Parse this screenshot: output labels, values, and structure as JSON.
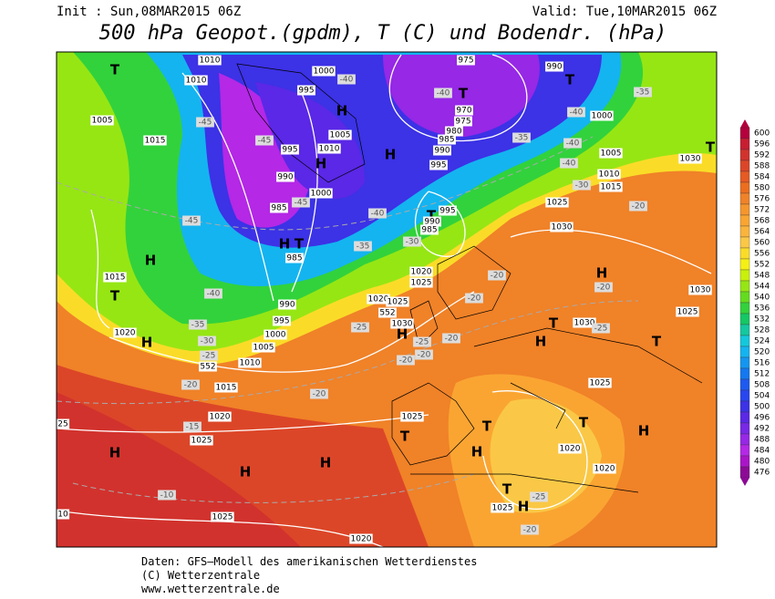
{
  "header": {
    "init": "Init : Sun,08MAR2015 06Z",
    "valid": "Valid: Tue,10MAR2015 06Z",
    "title": "500 hPa Geopot.(gpdm), T (C) und Bodendr. (hPa)"
  },
  "scale": {
    "ticks": [
      600,
      596,
      592,
      588,
      584,
      580,
      576,
      572,
      568,
      564,
      560,
      556,
      552,
      548,
      544,
      540,
      536,
      532,
      528,
      524,
      520,
      516,
      512,
      508,
      504,
      500,
      496,
      492,
      488,
      484,
      480,
      476
    ],
    "colors": [
      "#b4003c",
      "#c81e32",
      "#d2322d",
      "#dc4628",
      "#e65a23",
      "#eb6e1e",
      "#f08228",
      "#f5962d",
      "#faa532",
      "#fab43c",
      "#fac846",
      "#fadc28",
      "#f5f014",
      "#c8f00a",
      "#96e614",
      "#64dc1e",
      "#32d23c",
      "#14c864",
      "#14c8a0",
      "#14c8dc",
      "#14b4f0",
      "#1496f0",
      "#1478f0",
      "#1e5af0",
      "#2846f0",
      "#3c32e6",
      "#5a28e6",
      "#7828e6",
      "#9628e6",
      "#b428e6",
      "#aa14c8",
      "#8c0a96"
    ]
  },
  "map": {
    "labels": [
      "T",
      "1010",
      "1010",
      "1005",
      "1015",
      "-45",
      "-45",
      "995",
      "1000",
      "-40",
      "H",
      "1005",
      "1010",
      "995",
      "H",
      "-45",
      "990",
      "985",
      "-45",
      "1000",
      "H",
      "975",
      "T",
      "-40",
      "970",
      "975",
      "980",
      "985",
      "990",
      "995",
      "990",
      "T",
      "-35",
      "-40",
      "1000",
      "-35",
      "-40",
      "1005",
      "-40",
      "1010",
      "1015",
      "-30",
      "1025",
      "-20",
      "T",
      "1030",
      "T",
      "995",
      "990",
      "985",
      "-40",
      "-35",
      "-30",
      "1030",
      "H",
      "1015",
      "T",
      "-40",
      "T",
      "985",
      "H",
      "990",
      "995",
      "1000",
      "1005",
      "1010",
      "1020",
      "H",
      "-35",
      "-30",
      "-25",
      "552",
      "-20",
      "1015",
      "-25",
      "1020",
      "1025",
      "552",
      "1030",
      "H",
      "-25",
      "-20",
      "-20",
      "-20",
      "1020",
      "1025",
      "H",
      "-20",
      "1030",
      "1025",
      "T",
      "1030",
      "H",
      "T",
      "-25",
      "1025",
      "-20",
      "-20",
      "-20",
      "1020",
      "-15",
      "1025",
      "1025",
      "T",
      "T",
      "T",
      "1020",
      "H",
      "H",
      "1020",
      "H",
      "H",
      "H",
      "-10",
      "1025",
      "T",
      "-25",
      "1025",
      "H",
      "-20",
      "1020",
      "10",
      "25"
    ]
  },
  "footer": {
    "line1": "Daten: GFS–Modell des amerikanischen Wetterdienstes",
    "line2": "(C) Wetterzentrale",
    "line3": "www.wetterzentrale.de"
  }
}
